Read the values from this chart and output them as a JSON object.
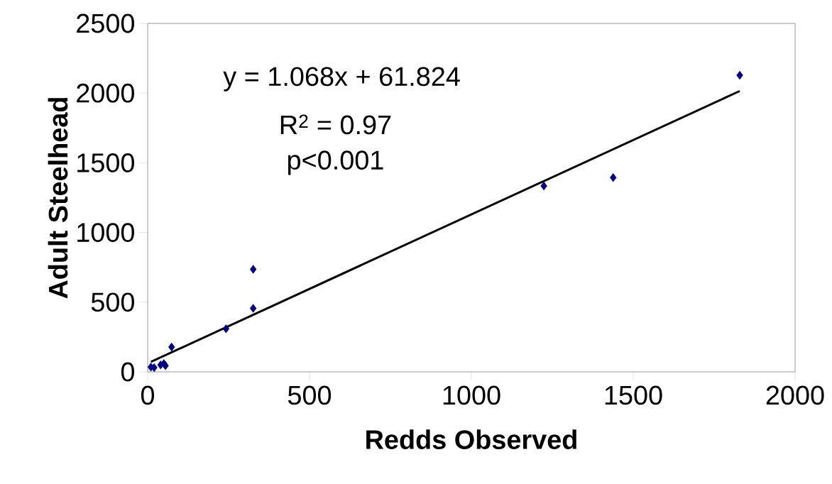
{
  "chart_data": {
    "type": "scatter",
    "xlabel": "Redds Observed",
    "ylabel": "Adult Steelhead",
    "annotations": [
      "y = 1.068x + 61.824",
      "R$^{2}$ = 0.97",
      "p<0.001"
    ],
    "xlim": [
      0,
      2000
    ],
    "xticks": [
      0,
      500,
      1000,
      1500,
      2000
    ],
    "ylim": [
      0,
      2500
    ],
    "yticks": [
      0,
      500,
      1000,
      1500,
      2000,
      2500
    ],
    "grid": false,
    "series": [
      {
        "marker": "diamond",
        "color": "#000080",
        "x": [
          10,
          20,
          40,
          50,
          55,
          74,
          242,
          326,
          326,
          1224,
          1438,
          1829
        ],
        "values": [
          35,
          30,
          50,
          60,
          45,
          178,
          309,
          456,
          736,
          1334,
          1394,
          2128
        ]
      },
      {
        "type": "line",
        "marker": "none",
        "color": "#000000",
        "x": [
          10,
          1829
        ],
        "values": [
          72,
          2015
        ]
      }
    ]
  }
}
